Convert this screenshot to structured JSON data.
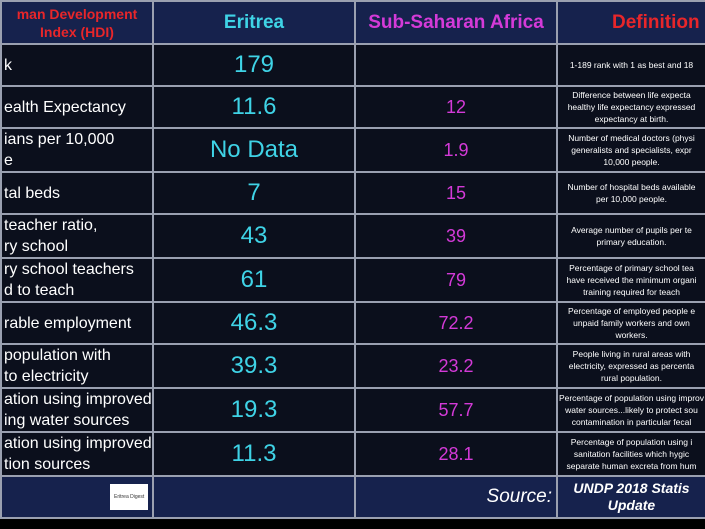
{
  "table": {
    "header": [
      "man Development\nIndex (HDI)",
      "Eritrea",
      "Sub-Saharan Africa",
      "Definition"
    ],
    "rows": [
      [
        "k",
        179,
        "",
        "1-189 rank with 1 as best and 18"
      ],
      [
        "ealth Expectancy",
        11.6,
        12,
        "Difference between life expecta\nhealthy life expectancy expressed\nexpectancy at birth."
      ],
      [
        "ians per 10,000\ne",
        "No Data",
        1.9,
        "Number of medical doctors (physi\ngeneralists and specialists, expr\n10,000 people."
      ],
      [
        "tal beds",
        7,
        15,
        "Number of hospital beds available\nper 10,000 people."
      ],
      [
        "teacher ratio,\nry school",
        43,
        39,
        "Average number of pupils per te\nprimary education."
      ],
      [
        "ry school teachers\nd to teach",
        61,
        79,
        "Percentage of primary school tea\nhave received the minimum organi\ntraining required for teach"
      ],
      [
        "rable employment",
        46.3,
        72.2,
        "Percentage of employed people e\nunpaid family workers and own\nworkers."
      ],
      [
        "population with\n to electricity",
        39.3,
        23.2,
        "People living in rural areas with\nelectricity, expressed as percenta\nrural population."
      ],
      [
        "ation using improved\ning water sources",
        19.3,
        57.7,
        "Percentage of population using improv\nwater sources...likely to protect sou\ncontamination in particular fecal"
      ],
      [
        "ation using improved\ntion sources",
        11.3,
        28.1,
        "Percentage of population using i\nsanitation facilities which hygic\nseparate human excreta from hum"
      ]
    ],
    "footer": {
      "logo": "Eritrea Digest",
      "source_label": "Source:",
      "source": "UNDP 2018 Statis\nUpdate"
    }
  }
}
